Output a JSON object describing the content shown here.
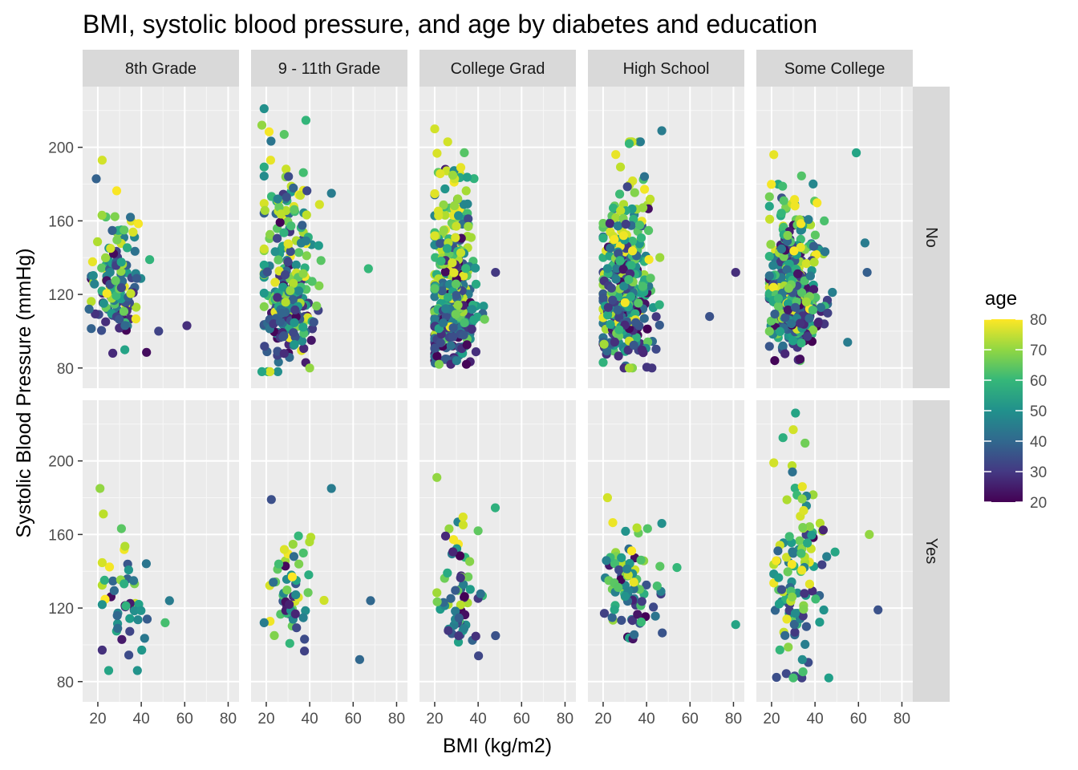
{
  "chart_data": {
    "type": "scatter",
    "title": "BMI, systolic blood pressure, and age by diabetes and education",
    "xlabel": "BMI (kg/m2)",
    "ylabel": "Systolic Blood Pressure (mmHg)",
    "xlim": [
      13,
      85
    ],
    "ylim": [
      69,
      233
    ],
    "x_ticks": [
      20,
      40,
      60,
      80
    ],
    "y_ticks": [
      80,
      120,
      160,
      200
    ],
    "grid": true,
    "facet_columns": [
      "8th Grade",
      "9 - 11th Grade",
      "College Grad",
      "High School",
      "Some College"
    ],
    "facet_rows": [
      "No",
      "Yes"
    ],
    "color_legend": {
      "title": "age",
      "scale": "viridis",
      "min": 20,
      "max": 80,
      "ticks": [
        20,
        30,
        40,
        50,
        60,
        70,
        80
      ],
      "position": "right"
    },
    "panels": [
      {
        "column": "8th Grade",
        "row": "No",
        "n": 120,
        "bmi_range": [
          16,
          61
        ],
        "bmi_center": 29,
        "bp_range": [
          88,
          193
        ],
        "bp_center": 125,
        "highlight_points": [
          {
            "bmi": 22,
            "sbp": 193,
            "age": 76
          },
          {
            "bmi": 61,
            "sbp": 103,
            "age": 28
          },
          {
            "bmi": 35,
            "sbp": 162,
            "age": 42
          },
          {
            "bmi": 48,
            "sbp": 100,
            "age": 32
          },
          {
            "bmi": 16,
            "sbp": 112,
            "age": 40
          }
        ]
      },
      {
        "column": "9 - 11th Grade",
        "row": "No",
        "n": 270,
        "bmi_range": [
          18,
          67
        ],
        "bmi_center": 30,
        "bp_range": [
          78,
          221
        ],
        "bp_center": 118,
        "highlight_points": [
          {
            "bmi": 19,
            "sbp": 221,
            "age": 50
          },
          {
            "bmi": 18,
            "sbp": 212,
            "age": 70
          },
          {
            "bmi": 22,
            "sbp": 193,
            "age": 78
          },
          {
            "bmi": 67,
            "sbp": 134,
            "age": 60
          },
          {
            "bmi": 50,
            "sbp": 175,
            "age": 45
          },
          {
            "bmi": 40,
            "sbp": 80,
            "age": 70
          },
          {
            "bmi": 18,
            "sbp": 78,
            "age": 55
          }
        ]
      },
      {
        "column": "College Grad",
        "row": "No",
        "n": 480,
        "bmi_range": [
          19,
          48
        ],
        "bmi_center": 28,
        "bp_range": [
          82,
          210
        ],
        "bp_center": 115,
        "highlight_points": [
          {
            "bmi": 20,
            "sbp": 210,
            "age": 76
          },
          {
            "bmi": 26,
            "sbp": 203,
            "age": 76
          },
          {
            "bmi": 32,
            "sbp": 189,
            "age": 78
          },
          {
            "bmi": 48,
            "sbp": 132,
            "age": 30
          },
          {
            "bmi": 22,
            "sbp": 82,
            "age": 68
          }
        ]
      },
      {
        "column": "High School",
        "row": "No",
        "n": 420,
        "bmi_range": [
          19,
          81
        ],
        "bmi_center": 30,
        "bp_range": [
          80,
          209
        ],
        "bp_center": 118,
        "highlight_points": [
          {
            "bmi": 47,
            "sbp": 209,
            "age": 45
          },
          {
            "bmi": 32,
            "sbp": 202,
            "age": 60
          },
          {
            "bmi": 81,
            "sbp": 132,
            "age": 28
          },
          {
            "bmi": 69,
            "sbp": 108,
            "age": 35
          },
          {
            "bmi": 32,
            "sbp": 80,
            "age": 72
          }
        ]
      },
      {
        "column": "Some College",
        "row": "No",
        "n": 420,
        "bmi_range": [
          18,
          68
        ],
        "bmi_center": 30,
        "bp_range": [
          84,
          197
        ],
        "bp_center": 118,
        "highlight_points": [
          {
            "bmi": 21,
            "sbp": 196,
            "age": 78
          },
          {
            "bmi": 59,
            "sbp": 197,
            "age": 55
          },
          {
            "bmi": 63,
            "sbp": 148,
            "age": 45
          },
          {
            "bmi": 64,
            "sbp": 132,
            "age": 38
          },
          {
            "bmi": 55,
            "sbp": 94,
            "age": 45
          }
        ]
      },
      {
        "column": "8th Grade",
        "row": "Yes",
        "n": 45,
        "bmi_range": [
          21,
          53
        ],
        "bmi_center": 32,
        "bp_range": [
          86,
          185
        ],
        "bp_center": 128,
        "highlight_points": [
          {
            "bmi": 21,
            "sbp": 185,
            "age": 70
          },
          {
            "bmi": 25,
            "sbp": 86,
            "age": 55
          },
          {
            "bmi": 53,
            "sbp": 124,
            "age": 45
          },
          {
            "bmi": 51,
            "sbp": 112,
            "age": 62
          }
        ]
      },
      {
        "column": "9 - 11th Grade",
        "row": "Yes",
        "n": 55,
        "bmi_range": [
          19,
          68
        ],
        "bmi_center": 31,
        "bp_range": [
          92,
          185
        ],
        "bp_center": 128,
        "highlight_points": [
          {
            "bmi": 50,
            "sbp": 185,
            "age": 45
          },
          {
            "bmi": 68,
            "sbp": 124,
            "age": 40
          },
          {
            "bmi": 63,
            "sbp": 92,
            "age": 40
          },
          {
            "bmi": 19,
            "sbp": 112,
            "age": 45
          }
        ]
      },
      {
        "column": "College Grad",
        "row": "Yes",
        "n": 60,
        "bmi_range": [
          20,
          48
        ],
        "bmi_center": 31,
        "bp_range": [
          94,
          191
        ],
        "bp_center": 128,
        "highlight_points": [
          {
            "bmi": 21,
            "sbp": 191,
            "age": 70
          },
          {
            "bmi": 40,
            "sbp": 162,
            "age": 65
          },
          {
            "bmi": 48,
            "sbp": 105,
            "age": 35
          }
        ]
      },
      {
        "column": "High School",
        "row": "Yes",
        "n": 85,
        "bmi_range": [
          18,
          81
        ],
        "bmi_center": 32,
        "bp_range": [
          94,
          180
        ],
        "bp_center": 128,
        "highlight_points": [
          {
            "bmi": 22,
            "sbp": 180,
            "age": 76
          },
          {
            "bmi": 81,
            "sbp": 111,
            "age": 55
          },
          {
            "bmi": 47,
            "sbp": 166,
            "age": 50
          },
          {
            "bmi": 54,
            "sbp": 142,
            "age": 60
          }
        ]
      },
      {
        "column": "Some College",
        "row": "Yes",
        "n": 110,
        "bmi_range": [
          20,
          69
        ],
        "bmi_center": 32,
        "bp_range": [
          82,
          226
        ],
        "bp_center": 128,
        "highlight_points": [
          {
            "bmi": 31,
            "sbp": 226,
            "age": 55
          },
          {
            "bmi": 30,
            "sbp": 217,
            "age": 76
          },
          {
            "bmi": 21,
            "sbp": 199,
            "age": 76
          },
          {
            "bmi": 69,
            "sbp": 119,
            "age": 35
          },
          {
            "bmi": 65,
            "sbp": 160,
            "age": 70
          },
          {
            "bmi": 30,
            "sbp": 82,
            "age": 62
          }
        ]
      }
    ]
  }
}
